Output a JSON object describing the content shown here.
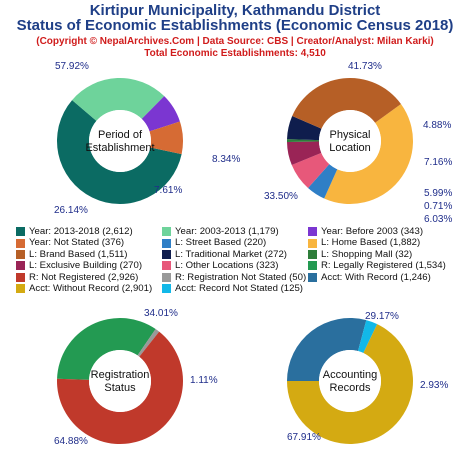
{
  "header": {
    "title_line1": "Kirtipur Municipality, Kathmandu District",
    "title_line2": "Status of Economic Establishments (Economic Census 2018)",
    "subtitle_line1": "(Copyright © NepalArchives.Com | Data Source: CBS | Creator/Analyst: Milan Karki)",
    "subtitle_line2": "Total Economic Establishments: 4,510"
  },
  "legend": [
    {
      "label": "Year: 2013-2018 (2,612)",
      "color": "#0b6b63"
    },
    {
      "label": "Year: 2003-2013 (1,179)",
      "color": "#6ed39b"
    },
    {
      "label": "Year: Before 2003 (343)",
      "color": "#7b36d1"
    },
    {
      "label": "Year: Not Stated (376)",
      "color": "#d66b34"
    },
    {
      "label": "L: Street Based (220)",
      "color": "#2f7fc6"
    },
    {
      "label": "L: Home Based (1,882)",
      "color": "#f8b53f"
    },
    {
      "label": "L: Brand Based (1,511)",
      "color": "#b65f26"
    },
    {
      "label": "L: Traditional Market (272)",
      "color": "#0f1d4d"
    },
    {
      "label": "L: Shopping Mall (32)",
      "color": "#2e7d3a"
    },
    {
      "label": "L: Exclusive Building (270)",
      "color": "#9a2456"
    },
    {
      "label": "L: Other Locations (323)",
      "color": "#e7587a"
    },
    {
      "label": "R: Legally Registered (1,534)",
      "color": "#239a52"
    },
    {
      "label": "R: Not Registered (2,926)",
      "color": "#c0392b"
    },
    {
      "label": "R: Registration Not Stated (50)",
      "color": "#999999"
    },
    {
      "label": "Acct: With Record (1,246)",
      "color": "#2a6f9e"
    },
    {
      "label": "Acct: Without Record (2,901)",
      "color": "#d4aa12"
    },
    {
      "label": "Acct: Record Not Stated (125)",
      "color": "#12b8e8"
    }
  ],
  "chart_data": [
    {
      "type": "pie",
      "center_label": [
        "Period of",
        "Establishment"
      ],
      "categories": [
        "Year: 2013-2018",
        "Year: 2003-2013",
        "Year: Before 2003",
        "Year: Not Stated"
      ],
      "values": [
        2612,
        1179,
        343,
        376
      ],
      "percent_labels": [
        "57.92%",
        "26.14%",
        "7.61%",
        "8.34%"
      ],
      "colors": [
        "#0b6b63",
        "#6ed39b",
        "#7b36d1",
        "#d66b34"
      ]
    },
    {
      "type": "pie",
      "center_label": [
        "Physical",
        "Location"
      ],
      "categories": [
        "L: Home Based",
        "L: Street Based",
        "L: Other Locations",
        "L: Exclusive Building",
        "L: Shopping Mall",
        "L: Traditional Market",
        "L: Brand Based"
      ],
      "values": [
        1882,
        220,
        323,
        270,
        32,
        272,
        1511
      ],
      "percent_labels": [
        "41.73%",
        "4.88%",
        "7.16%",
        "5.99%",
        "0.71%",
        "6.03%",
        "33.50%"
      ],
      "colors": [
        "#f8b53f",
        "#2f7fc6",
        "#e7587a",
        "#9a2456",
        "#2e7d3a",
        "#0f1d4d",
        "#b65f26"
      ]
    },
    {
      "type": "pie",
      "center_label": [
        "Registration",
        "Status"
      ],
      "categories": [
        "R: Legally Registered",
        "R: Registration Not Stated",
        "R: Not Registered"
      ],
      "values": [
        1534,
        50,
        2926
      ],
      "percent_labels": [
        "34.01%",
        "1.11%",
        "64.88%"
      ],
      "colors": [
        "#239a52",
        "#999999",
        "#c0392b"
      ]
    },
    {
      "type": "pie",
      "center_label": [
        "Accounting",
        "Records"
      ],
      "categories": [
        "Acct: With Record",
        "Acct: Record Not Stated",
        "Acct: Without Record"
      ],
      "values": [
        1246,
        125,
        2901
      ],
      "percent_labels": [
        "29.17%",
        "2.93%",
        "67.91%"
      ],
      "colors": [
        "#2a6f9e",
        "#12b8e8",
        "#d4aa12"
      ]
    }
  ]
}
